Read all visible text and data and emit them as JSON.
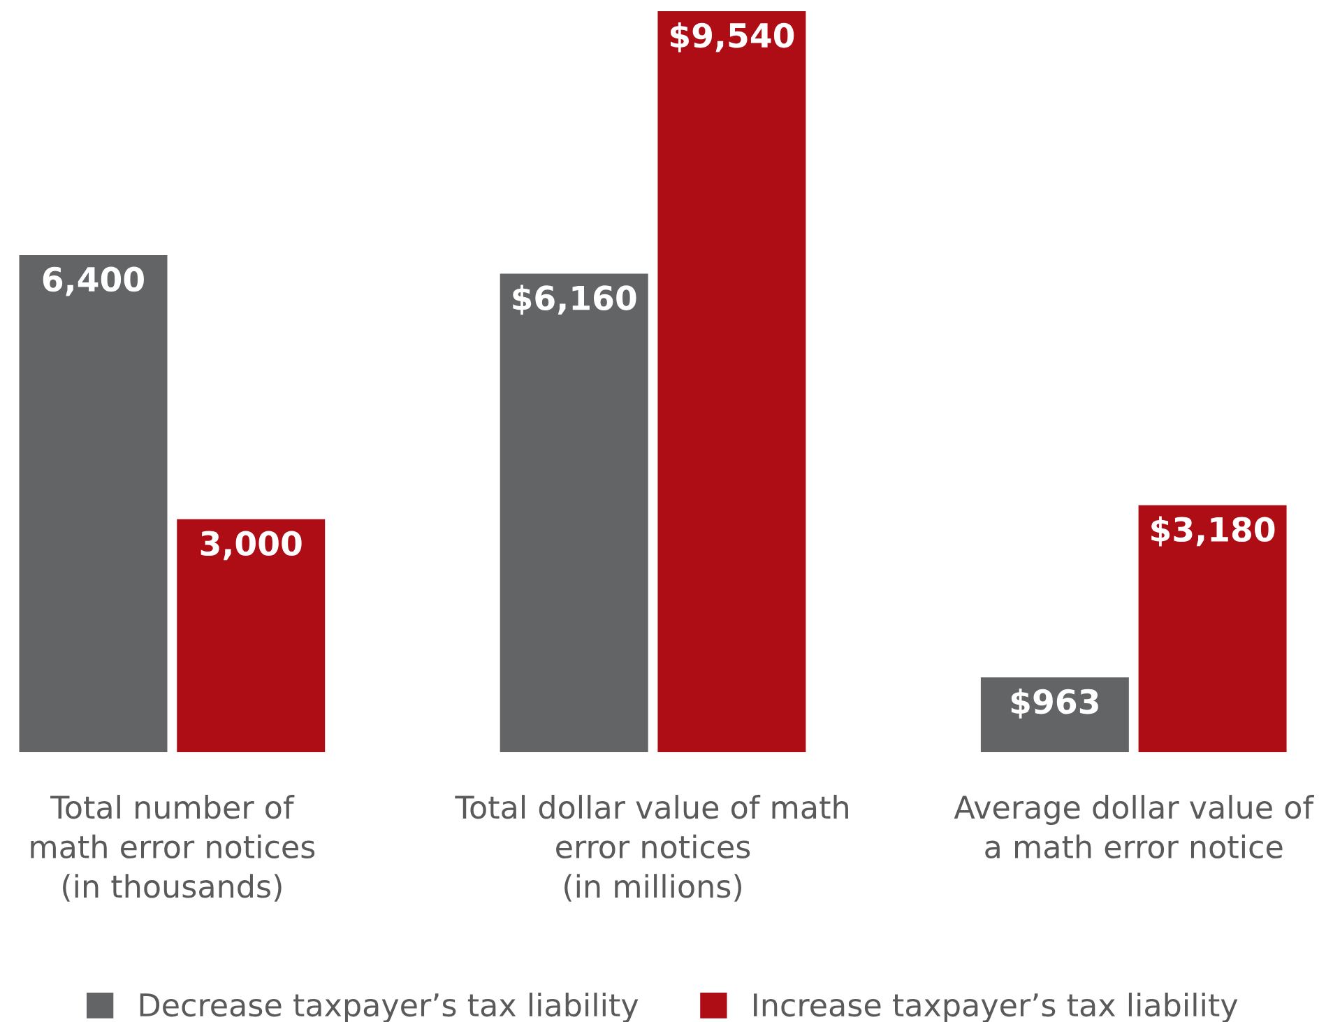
{
  "chart_data": {
    "type": "bar",
    "categories": [
      "Total number of\nmath error notices\n(in thousands)",
      "Total dollar value of math\nerror notices\n(in millions)",
      "Average dollar value of\na math error notice"
    ],
    "series": [
      {
        "name": "Decrease taxpayer’s tax liability",
        "color": "#636466",
        "values": [
          6400,
          6160,
          963
        ],
        "value_labels": [
          "6,400",
          "$6,160",
          "$963"
        ]
      },
      {
        "name": "Increase taxpayer’s tax liability",
        "color": "#ae0d16",
        "values": [
          3000,
          9540,
          3180
        ],
        "value_labels": [
          "3,000",
          "$9,540",
          "$3,180"
        ]
      }
    ],
    "legend": "bottom",
    "grid": false
  }
}
